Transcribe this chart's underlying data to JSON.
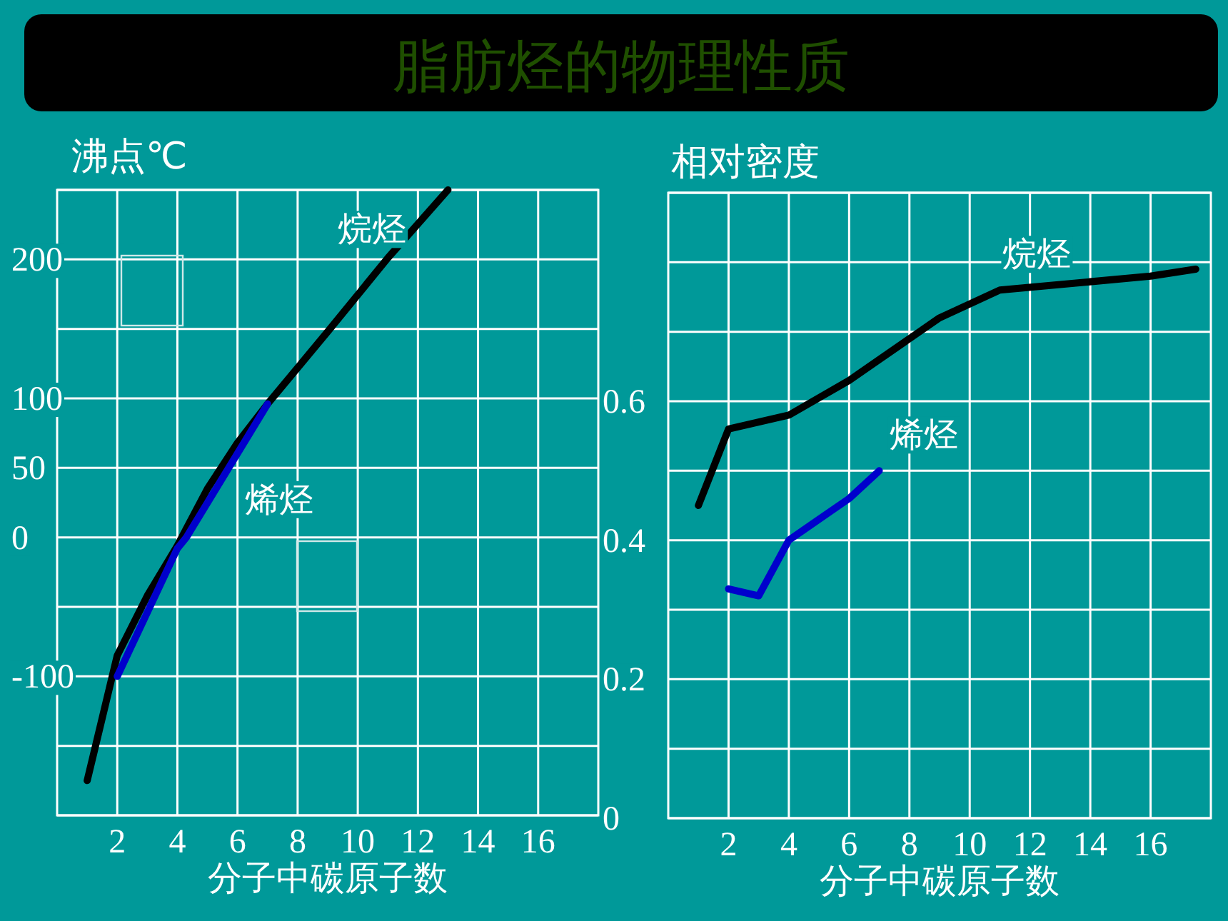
{
  "chart_data": [
    {
      "type": "line",
      "title": "脂肪烃的物理性质",
      "ylabel": "沸点℃",
      "xlabel": "分子中碳原子数",
      "xlim": [
        0,
        18
      ],
      "xticks": [
        2,
        4,
        6,
        8,
        10,
        12,
        14,
        16
      ],
      "ylim": [
        -200,
        250
      ],
      "yticks": [
        {
          "value": -200,
          "label": null
        },
        {
          "value": -150,
          "label": null
        },
        -100,
        {
          "value": -50,
          "label": null
        },
        0,
        50,
        100,
        {
          "value": 150,
          "label": null
        },
        200,
        {
          "value": 250,
          "label": null
        }
      ],
      "grid": true,
      "series": [
        {
          "name": "烷烃",
          "color": "#000000",
          "x": [
            1,
            2,
            3,
            4,
            5,
            6,
            7,
            9,
            11,
            13
          ],
          "values": [
            -175,
            -85,
            -42,
            -6,
            35,
            68,
            96,
            148,
            201,
            250
          ]
        },
        {
          "name": "烯烃",
          "color": "#0000cc",
          "x": [
            2,
            4,
            4.3,
            7
          ],
          "values": [
            -100,
            -8,
            0,
            96
          ]
        }
      ]
    },
    {
      "type": "line",
      "ylabel": "相对密度",
      "xlabel": "分子中碳原子数",
      "xlim": [
        0,
        18
      ],
      "xticks": [
        2,
        4,
        6,
        8,
        10,
        12,
        14,
        16
      ],
      "ylim": [
        0,
        0.9
      ],
      "yticks": [
        0,
        {
          "value": 0.1,
          "label": null
        },
        0.2,
        {
          "value": 0.3,
          "label": null
        },
        0.4,
        {
          "value": 0.5,
          "label": null
        },
        0.6,
        {
          "value": 0.7,
          "label": null
        },
        {
          "value": 0.8,
          "label": null
        },
        {
          "value": 0.9,
          "label": null
        }
      ],
      "grid": true,
      "series": [
        {
          "name": "烷烃",
          "color": "#000000",
          "x": [
            1,
            2,
            4,
            6,
            9,
            11,
            16,
            17.5
          ],
          "values": [
            0.45,
            0.56,
            0.58,
            0.63,
            0.72,
            0.76,
            0.78,
            0.79
          ]
        },
        {
          "name": "烯烃",
          "color": "#0000cc",
          "x": [
            2,
            3,
            4,
            5,
            6,
            7
          ],
          "values": [
            0.33,
            0.32,
            0.4,
            0.43,
            0.46,
            0.5
          ]
        }
      ]
    }
  ]
}
